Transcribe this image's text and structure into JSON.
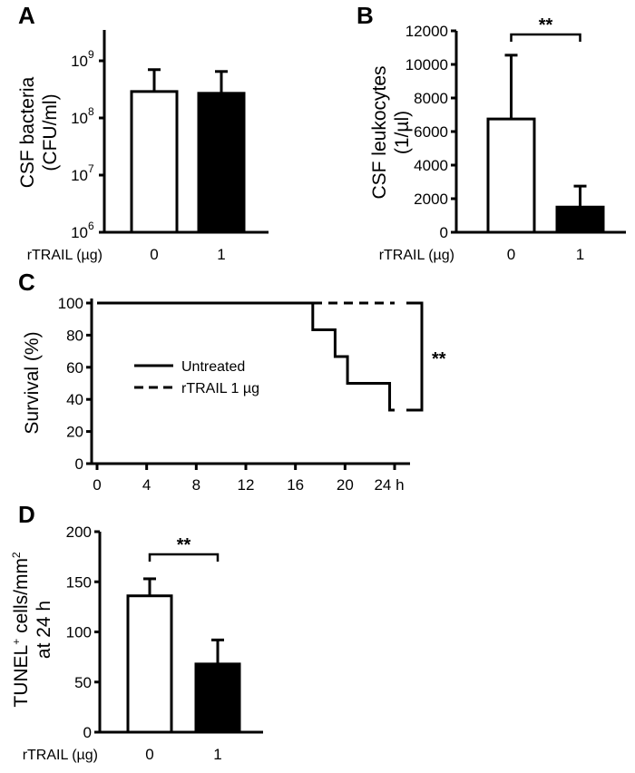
{
  "chart_data": [
    {
      "panel": "A",
      "type": "bar",
      "ylabel": [
        "CSF bacteria",
        "(CFU/ml)"
      ],
      "xlabel": "rTRAIL (µg)",
      "yscale": "log",
      "ylim": [
        1000000,
        3000000000
      ],
      "yticks": [
        {
          "value": 1000000,
          "label": "10",
          "exp": "6"
        },
        {
          "value": 10000000,
          "label": "10",
          "exp": "7"
        },
        {
          "value": 100000000,
          "label": "10",
          "exp": "8"
        },
        {
          "value": 1000000000,
          "label": "10",
          "exp": "9"
        }
      ],
      "categories": [
        "0",
        "1"
      ],
      "values": [
        290000000,
        270000000
      ],
      "error_upper": [
        700000000,
        650000000
      ],
      "bar_colors": [
        "#ffffff",
        "#000000"
      ],
      "significance": ""
    },
    {
      "panel": "B",
      "type": "bar",
      "ylabel": [
        "CSF leukocytes",
        "(1/µl)"
      ],
      "xlabel": "rTRAIL (µg)",
      "yscale": "linear",
      "ylim": [
        0,
        12000
      ],
      "yticks": [
        {
          "value": 0,
          "label": "0"
        },
        {
          "value": 2000,
          "label": "2000"
        },
        {
          "value": 4000,
          "label": "4000"
        },
        {
          "value": 6000,
          "label": "6000"
        },
        {
          "value": 8000,
          "label": "8000"
        },
        {
          "value": 10000,
          "label": "10000"
        },
        {
          "value": 12000,
          "label": "12000"
        }
      ],
      "categories": [
        "0",
        "1"
      ],
      "values": [
        6750,
        1500
      ],
      "error_upper": [
        10550,
        2750
      ],
      "bar_colors": [
        "#ffffff",
        "#000000"
      ],
      "significance": "**"
    },
    {
      "panel": "C",
      "type": "line",
      "ylabel": "Survival (%)",
      "ylim": [
        0,
        100
      ],
      "xlim": [
        0,
        24
      ],
      "yticks": [
        "0",
        "20",
        "40",
        "60",
        "80",
        "100"
      ],
      "xticks": [
        "0",
        "4",
        "8",
        "12",
        "16",
        "20",
        "24 h"
      ],
      "series": [
        {
          "name": "Untreated",
          "style": "solid",
          "x": [
            0,
            17.4,
            17.4,
            19.2,
            19.2,
            20.2,
            20.2,
            23.6,
            23.6,
            24
          ],
          "y": [
            100,
            100,
            83.3,
            83.3,
            66.7,
            66.7,
            50,
            50,
            33.3,
            33.3
          ]
        },
        {
          "name": "rTRAIL 1 µg",
          "style": "dashed",
          "x": [
            0,
            24
          ],
          "y": [
            100,
            100
          ]
        }
      ],
      "legend": "center-left",
      "significance": "**"
    },
    {
      "panel": "D",
      "type": "bar",
      "ylabel": [
        "TUNEL",
        "+",
        " cells/mm",
        "2",
        "at 24 h"
      ],
      "xlabel": "rTRAIL (µg)",
      "yscale": "linear",
      "ylim": [
        0,
        200
      ],
      "yticks": [
        {
          "value": 0,
          "label": "0"
        },
        {
          "value": 50,
          "label": "50"
        },
        {
          "value": 100,
          "label": "100"
        },
        {
          "value": 150,
          "label": "150"
        },
        {
          "value": 200,
          "label": "200"
        }
      ],
      "categories": [
        "0",
        "1"
      ],
      "values": [
        136,
        68
      ],
      "error_upper": [
        153,
        92
      ],
      "bar_colors": [
        "#ffffff",
        "#000000"
      ],
      "significance": "**"
    }
  ]
}
